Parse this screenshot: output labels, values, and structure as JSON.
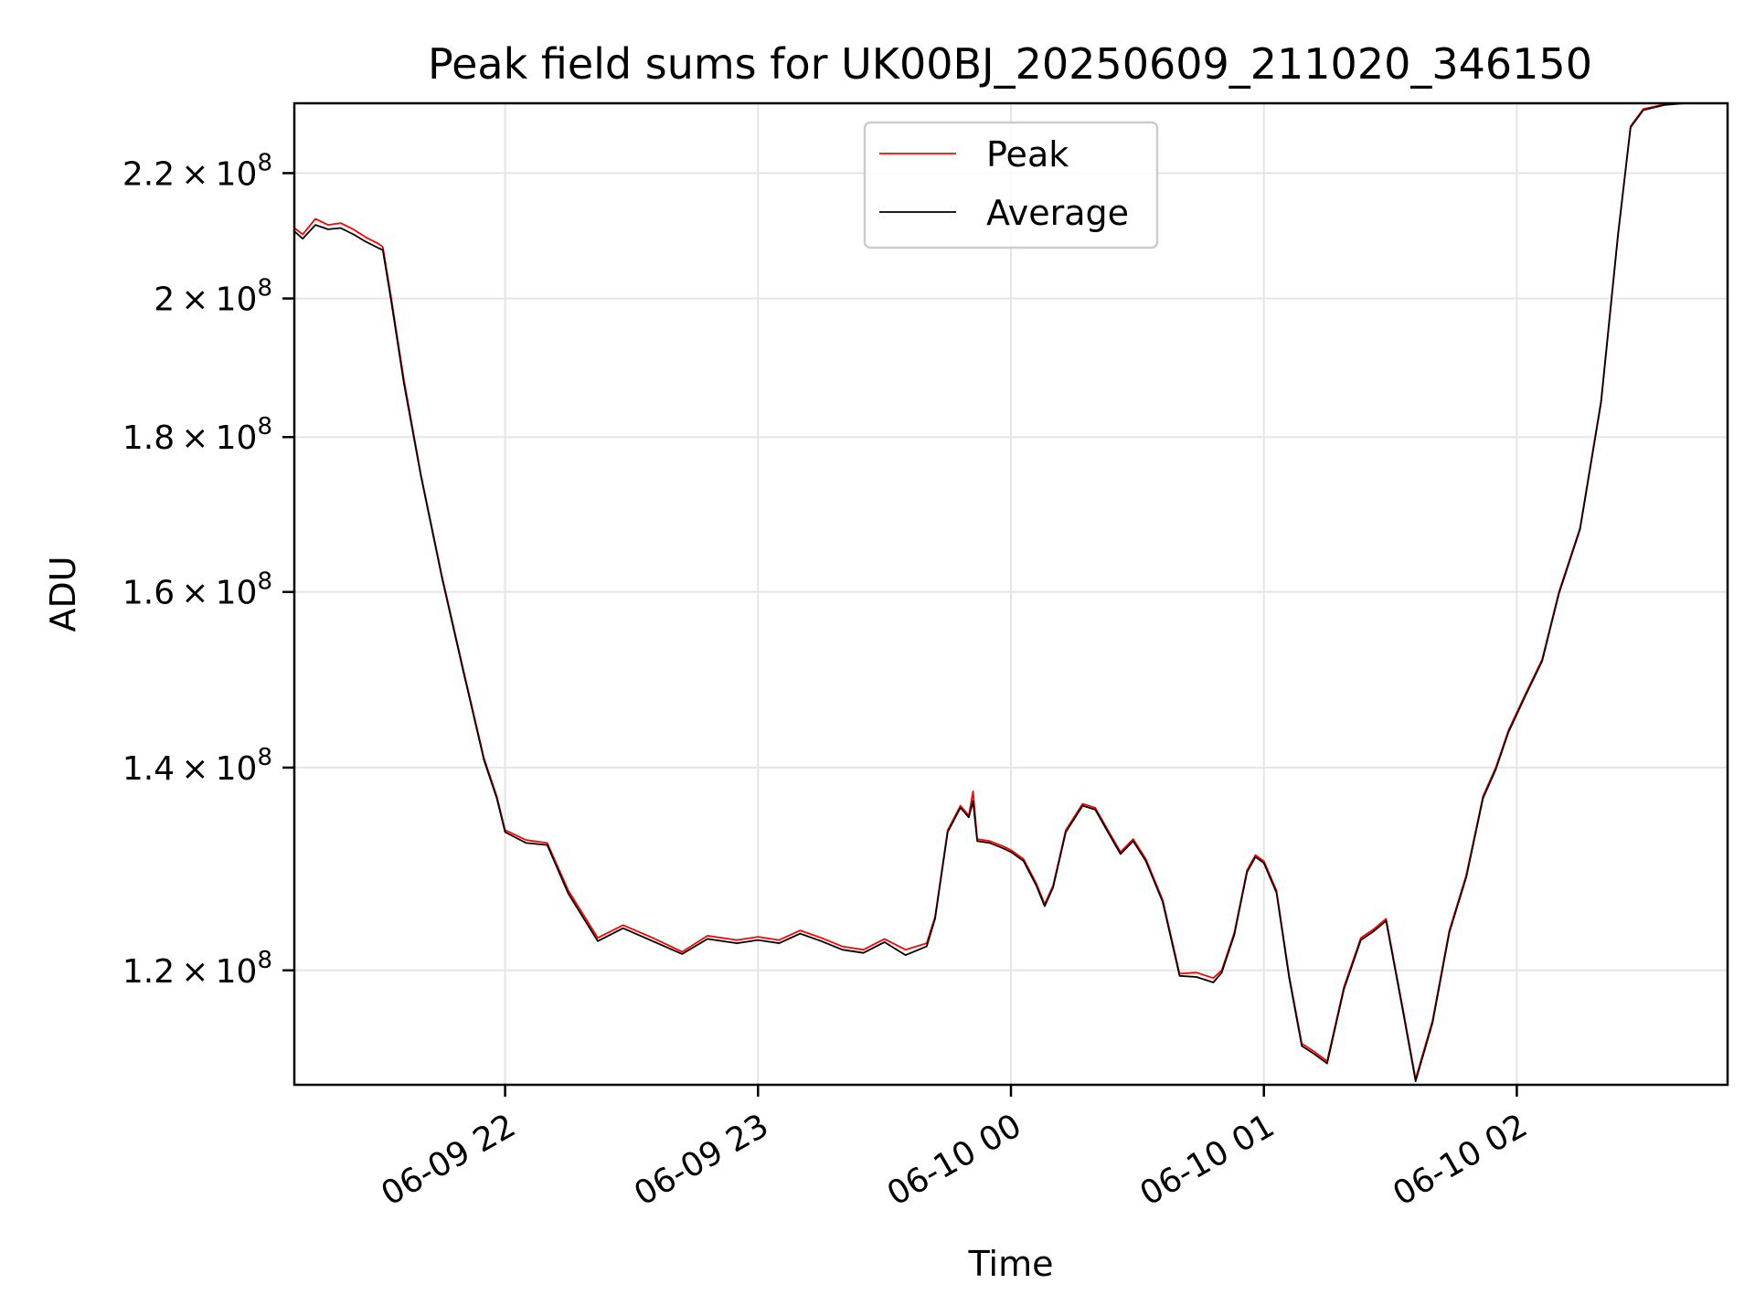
{
  "chart_data": {
    "type": "line",
    "title": "Peak field sums for UK00BJ_20250609_211020_346150",
    "xlabel": "Time",
    "ylabel": "ADU",
    "y_scale": "log",
    "grid": true,
    "legend_position": "top-center",
    "xlim": [
      "2025-06-09 21:10",
      "2025-06-10 02:50"
    ],
    "ylim": [
      110000000,
      232000000
    ],
    "x_ticks": [
      {
        "value": "2025-06-09 22:00",
        "label": "06-09 22"
      },
      {
        "value": "2025-06-09 23:00",
        "label": "06-09 23"
      },
      {
        "value": "2025-06-10 00:00",
        "label": "06-10 00"
      },
      {
        "value": "2025-06-10 01:00",
        "label": "06-10 01"
      },
      {
        "value": "2025-06-10 02:00",
        "label": "06-10 02"
      }
    ],
    "y_ticks": [
      {
        "value": 120000000,
        "mantissa": "1.2",
        "base": "10",
        "exp": "8"
      },
      {
        "value": 140000000,
        "mantissa": "1.4",
        "base": "10",
        "exp": "8"
      },
      {
        "value": 160000000,
        "mantissa": "1.6",
        "base": "10",
        "exp": "8"
      },
      {
        "value": 180000000,
        "mantissa": "1.8",
        "base": "10",
        "exp": "8"
      },
      {
        "value": 200000000,
        "mantissa": "2",
        "base": "10",
        "exp": "8"
      },
      {
        "value": 220000000,
        "mantissa": "2.2",
        "base": "10",
        "exp": "8"
      }
    ],
    "series": [
      {
        "name": "Peak",
        "color": "#ff0000",
        "points": [
          [
            "2025-06-09 21:10",
            211000000
          ],
          [
            "2025-06-09 21:12",
            210000000
          ],
          [
            "2025-06-09 21:15",
            212500000
          ],
          [
            "2025-06-09 21:18",
            211500000
          ],
          [
            "2025-06-09 21:21",
            211800000
          ],
          [
            "2025-06-09 21:24",
            210800000
          ],
          [
            "2025-06-09 21:27",
            209500000
          ],
          [
            "2025-06-09 21:30",
            208500000
          ],
          [
            "2025-06-09 21:31",
            208000000
          ],
          [
            "2025-06-09 21:33",
            200000000
          ],
          [
            "2025-06-09 21:36",
            188000000
          ],
          [
            "2025-06-09 21:40",
            175000000
          ],
          [
            "2025-06-09 21:45",
            162000000
          ],
          [
            "2025-06-09 21:50",
            151000000
          ],
          [
            "2025-06-09 21:55",
            141000000
          ],
          [
            "2025-06-09 21:58",
            137000000
          ],
          [
            "2025-06-09 22:00",
            133500000
          ],
          [
            "2025-06-09 22:05",
            132500000
          ],
          [
            "2025-06-09 22:10",
            132200000
          ],
          [
            "2025-06-09 22:15",
            127500000
          ],
          [
            "2025-06-09 22:22",
            123000000
          ],
          [
            "2025-06-09 22:28",
            124200000
          ],
          [
            "2025-06-09 22:35",
            123000000
          ],
          [
            "2025-06-09 22:42",
            121700000
          ],
          [
            "2025-06-09 22:48",
            123200000
          ],
          [
            "2025-06-09 22:55",
            122800000
          ],
          [
            "2025-06-09 23:00",
            123100000
          ],
          [
            "2025-06-09 23:05",
            122800000
          ],
          [
            "2025-06-09 23:10",
            123700000
          ],
          [
            "2025-06-09 23:15",
            123000000
          ],
          [
            "2025-06-09 23:20",
            122200000
          ],
          [
            "2025-06-09 23:25",
            121900000
          ],
          [
            "2025-06-09 23:30",
            122900000
          ],
          [
            "2025-06-09 23:35",
            121900000
          ],
          [
            "2025-06-09 23:40",
            122500000
          ],
          [
            "2025-06-09 23:42",
            125000000
          ],
          [
            "2025-06-09 23:45",
            133500000
          ],
          [
            "2025-06-09 23:48",
            136000000
          ],
          [
            "2025-06-09 23:50",
            135000000
          ],
          [
            "2025-06-09 23:51",
            137500000
          ],
          [
            "2025-06-09 23:52",
            132600000
          ],
          [
            "2025-06-09 23:55",
            132400000
          ],
          [
            "2025-06-09 23:58",
            131900000
          ],
          [
            "2025-06-10 00:00",
            131500000
          ],
          [
            "2025-06-10 00:03",
            130600000
          ],
          [
            "2025-06-10 00:06",
            128200000
          ],
          [
            "2025-06-10 00:08",
            126200000
          ],
          [
            "2025-06-10 00:10",
            128000000
          ],
          [
            "2025-06-10 00:13",
            133500000
          ],
          [
            "2025-06-10 00:17",
            136200000
          ],
          [
            "2025-06-10 00:20",
            135800000
          ],
          [
            "2025-06-10 00:23",
            133500000
          ],
          [
            "2025-06-10 00:26",
            131300000
          ],
          [
            "2025-06-10 00:29",
            132600000
          ],
          [
            "2025-06-10 00:32",
            130600000
          ],
          [
            "2025-06-10 00:36",
            126600000
          ],
          [
            "2025-06-10 00:40",
            119700000
          ],
          [
            "2025-06-10 00:44",
            119800000
          ],
          [
            "2025-06-10 00:48",
            119300000
          ],
          [
            "2025-06-10 00:50",
            120000000
          ],
          [
            "2025-06-10 00:53",
            123500000
          ],
          [
            "2025-06-10 00:56",
            129500000
          ],
          [
            "2025-06-10 00:58",
            131000000
          ],
          [
            "2025-06-10 01:00",
            130400000
          ],
          [
            "2025-06-10 01:03",
            127500000
          ],
          [
            "2025-06-10 01:06",
            119500000
          ],
          [
            "2025-06-10 01:09",
            113500000
          ],
          [
            "2025-06-10 01:12",
            112800000
          ],
          [
            "2025-06-10 01:15",
            112000000
          ],
          [
            "2025-06-10 01:19",
            118500000
          ],
          [
            "2025-06-10 01:23",
            123000000
          ],
          [
            "2025-06-10 01:26",
            123800000
          ],
          [
            "2025-06-10 01:29",
            124800000
          ],
          [
            "2025-06-10 01:33",
            116500000
          ],
          [
            "2025-06-10 01:36",
            110500000
          ],
          [
            "2025-06-10 01:40",
            115500000
          ],
          [
            "2025-06-10 01:44",
            123700000
          ],
          [
            "2025-06-10 01:48",
            129000000
          ],
          [
            "2025-06-10 01:52",
            137000000
          ],
          [
            "2025-06-10 01:55",
            140000000
          ],
          [
            "2025-06-10 01:58",
            144000000
          ],
          [
            "2025-06-10 02:02",
            148000000
          ],
          [
            "2025-06-10 02:06",
            152000000
          ],
          [
            "2025-06-10 02:10",
            160000000
          ],
          [
            "2025-06-10 02:15",
            168000000
          ],
          [
            "2025-06-10 02:20",
            185000000
          ],
          [
            "2025-06-10 02:24",
            210000000
          ],
          [
            "2025-06-10 02:27",
            228000000
          ],
          [
            "2025-06-10 02:30",
            231000000
          ],
          [
            "2025-06-10 02:35",
            231800000
          ],
          [
            "2025-06-10 02:40",
            232000000
          ]
        ]
      },
      {
        "name": "Average",
        "color": "#000000",
        "points": [
          [
            "2025-06-09 21:10",
            210500000
          ],
          [
            "2025-06-09 21:12",
            209300000
          ],
          [
            "2025-06-09 21:15",
            211500000
          ],
          [
            "2025-06-09 21:18",
            210800000
          ],
          [
            "2025-06-09 21:21",
            211000000
          ],
          [
            "2025-06-09 21:24",
            210000000
          ],
          [
            "2025-06-09 21:27",
            208800000
          ],
          [
            "2025-06-09 21:30",
            207800000
          ],
          [
            "2025-06-09 21:31",
            207500000
          ],
          [
            "2025-06-09 21:33",
            199500000
          ],
          [
            "2025-06-09 21:36",
            187500000
          ],
          [
            "2025-06-09 21:40",
            174800000
          ],
          [
            "2025-06-09 21:45",
            161800000
          ],
          [
            "2025-06-09 21:50",
            150800000
          ],
          [
            "2025-06-09 21:55",
            140800000
          ],
          [
            "2025-06-09 21:58",
            136800000
          ],
          [
            "2025-06-09 22:00",
            133300000
          ],
          [
            "2025-06-09 22:05",
            132200000
          ],
          [
            "2025-06-09 22:10",
            132000000
          ],
          [
            "2025-06-09 22:15",
            127200000
          ],
          [
            "2025-06-09 22:22",
            122700000
          ],
          [
            "2025-06-09 22:28",
            123900000
          ],
          [
            "2025-06-09 22:35",
            122700000
          ],
          [
            "2025-06-09 22:42",
            121500000
          ],
          [
            "2025-06-09 22:48",
            122900000
          ],
          [
            "2025-06-09 22:55",
            122500000
          ],
          [
            "2025-06-09 23:00",
            122800000
          ],
          [
            "2025-06-09 23:05",
            122500000
          ],
          [
            "2025-06-09 23:10",
            123400000
          ],
          [
            "2025-06-09 23:15",
            122700000
          ],
          [
            "2025-06-09 23:20",
            121900000
          ],
          [
            "2025-06-09 23:25",
            121600000
          ],
          [
            "2025-06-09 23:30",
            122600000
          ],
          [
            "2025-06-09 23:35",
            121400000
          ],
          [
            "2025-06-09 23:40",
            122200000
          ],
          [
            "2025-06-09 23:42",
            124800000
          ],
          [
            "2025-06-09 23:45",
            133300000
          ],
          [
            "2025-06-09 23:48",
            135800000
          ],
          [
            "2025-06-09 23:50",
            134800000
          ],
          [
            "2025-06-09 23:51",
            136500000
          ],
          [
            "2025-06-09 23:52",
            132400000
          ],
          [
            "2025-06-09 23:55",
            132200000
          ],
          [
            "2025-06-09 23:58",
            131700000
          ],
          [
            "2025-06-10 00:00",
            131300000
          ],
          [
            "2025-06-10 00:03",
            130400000
          ],
          [
            "2025-06-10 00:06",
            128000000
          ],
          [
            "2025-06-10 00:08",
            126000000
          ],
          [
            "2025-06-10 00:10",
            127800000
          ],
          [
            "2025-06-10 00:13",
            133300000
          ],
          [
            "2025-06-10 00:17",
            136000000
          ],
          [
            "2025-06-10 00:20",
            135600000
          ],
          [
            "2025-06-10 00:23",
            133300000
          ],
          [
            "2025-06-10 00:26",
            131100000
          ],
          [
            "2025-06-10 00:29",
            132400000
          ],
          [
            "2025-06-10 00:32",
            130400000
          ],
          [
            "2025-06-10 00:36",
            126400000
          ],
          [
            "2025-06-10 00:40",
            119500000
          ],
          [
            "2025-06-10 00:44",
            119400000
          ],
          [
            "2025-06-10 00:48",
            118900000
          ],
          [
            "2025-06-10 00:50",
            119800000
          ],
          [
            "2025-06-10 00:53",
            123300000
          ],
          [
            "2025-06-10 00:56",
            129300000
          ],
          [
            "2025-06-10 00:58",
            130800000
          ],
          [
            "2025-06-10 01:00",
            130200000
          ],
          [
            "2025-06-10 01:03",
            127300000
          ],
          [
            "2025-06-10 01:06",
            119300000
          ],
          [
            "2025-06-10 01:09",
            113300000
          ],
          [
            "2025-06-10 01:12",
            112600000
          ],
          [
            "2025-06-10 01:15",
            111800000
          ],
          [
            "2025-06-10 01:19",
            118300000
          ],
          [
            "2025-06-10 01:23",
            122800000
          ],
          [
            "2025-06-10 01:26",
            123600000
          ],
          [
            "2025-06-10 01:29",
            124600000
          ],
          [
            "2025-06-10 01:33",
            116300000
          ],
          [
            "2025-06-10 01:36",
            110300000
          ],
          [
            "2025-06-10 01:40",
            115300000
          ],
          [
            "2025-06-10 01:44",
            123500000
          ],
          [
            "2025-06-10 01:48",
            128800000
          ],
          [
            "2025-06-10 01:52",
            136800000
          ],
          [
            "2025-06-10 01:55",
            139800000
          ],
          [
            "2025-06-10 01:58",
            143800000
          ],
          [
            "2025-06-10 02:02",
            147800000
          ],
          [
            "2025-06-10 02:06",
            151800000
          ],
          [
            "2025-06-10 02:10",
            159800000
          ],
          [
            "2025-06-10 02:15",
            167800000
          ],
          [
            "2025-06-10 02:20",
            184800000
          ],
          [
            "2025-06-10 02:24",
            209800000
          ],
          [
            "2025-06-10 02:27",
            227800000
          ],
          [
            "2025-06-10 02:30",
            230800000
          ],
          [
            "2025-06-10 02:35",
            231700000
          ],
          [
            "2025-06-10 02:40",
            232000000
          ]
        ]
      }
    ]
  }
}
